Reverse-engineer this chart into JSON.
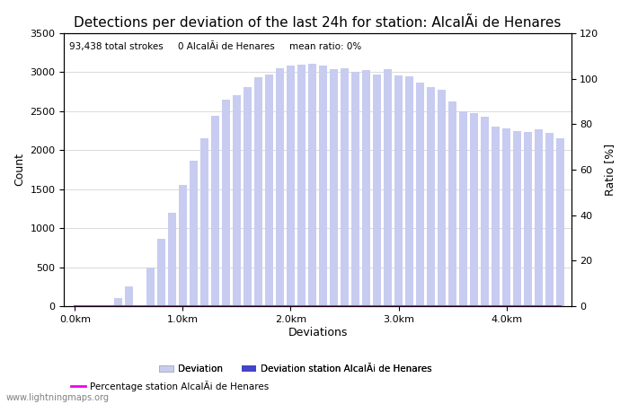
{
  "title": "Detections per deviation of the last 24h for station: AlcalÃi de Henares",
  "subtitle": "93,438 total strokes     0 AlcalÃi de Henares     mean ratio: 0%",
  "xlabel": "Deviations",
  "ylabel_left": "Count",
  "ylabel_right": "Ratio [%]",
  "ylim_left": [
    0,
    3500
  ],
  "ylim_right": [
    0,
    120
  ],
  "yticks_left": [
    0,
    500,
    1000,
    1500,
    2000,
    2500,
    3000,
    3500
  ],
  "yticks_right": [
    0,
    20,
    40,
    60,
    80,
    100,
    120
  ],
  "xtick_labels": [
    "0.0km",
    "1.0km",
    "2.0km",
    "3.0km",
    "4.0km"
  ],
  "xtick_positions": [
    0,
    10,
    20,
    30,
    40
  ],
  "bar_color": "#c8ccf0",
  "bar_station_color": "#4444cc",
  "line_color": "#ee00ee",
  "background_color": "#ffffff",
  "bar_width": 0.75,
  "x_values": [
    0,
    1,
    2,
    3,
    4,
    5,
    6,
    7,
    8,
    9,
    10,
    11,
    12,
    13,
    14,
    15,
    16,
    17,
    18,
    19,
    20,
    21,
    22,
    23,
    24,
    25,
    26,
    27,
    28,
    29,
    30,
    31,
    32,
    33,
    34,
    35,
    36,
    37,
    38,
    39,
    40,
    41,
    42,
    43,
    44,
    45
  ],
  "counts": [
    0,
    0,
    0,
    0,
    100,
    250,
    0,
    500,
    860,
    1200,
    1550,
    1870,
    2150,
    2440,
    2650,
    2700,
    2810,
    2940,
    2970,
    3050,
    3080,
    3100,
    3110,
    3080,
    3040,
    3050,
    3010,
    3030,
    2970,
    3040,
    2960,
    2950,
    2870,
    2810,
    2780,
    2630,
    2500,
    2470,
    2430,
    2300,
    2280,
    2250,
    2230,
    2270,
    2220,
    2150
  ],
  "station_counts": [
    0,
    0,
    0,
    0,
    0,
    0,
    0,
    0,
    0,
    0,
    0,
    0,
    0,
    0,
    0,
    0,
    0,
    0,
    0,
    0,
    0,
    0,
    0,
    0,
    0,
    0,
    0,
    0,
    0,
    0,
    0,
    0,
    0,
    0,
    0,
    0,
    0,
    0,
    0,
    0,
    0,
    0,
    0,
    0,
    0,
    0
  ],
  "ratio": [
    0,
    0,
    0,
    0,
    0,
    0,
    0,
    0,
    0,
    0,
    0,
    0,
    0,
    0,
    0,
    0,
    0,
    0,
    0,
    0,
    0,
    0,
    0,
    0,
    0,
    0,
    0,
    0,
    0,
    0,
    0,
    0,
    0,
    0,
    0,
    0,
    0,
    0,
    0,
    0,
    0,
    0,
    0,
    0,
    0,
    0
  ],
  "legend_deviation_label": "Deviation",
  "legend_station_label": "Deviation station AlcalÃi de Henares",
  "legend_ratio_label": "Percentage station AlcalÃi de Henares",
  "watermark": "www.lightningmaps.org",
  "grid_color": "#cccccc",
  "title_fontsize": 11,
  "axis_fontsize": 9,
  "tick_fontsize": 8
}
